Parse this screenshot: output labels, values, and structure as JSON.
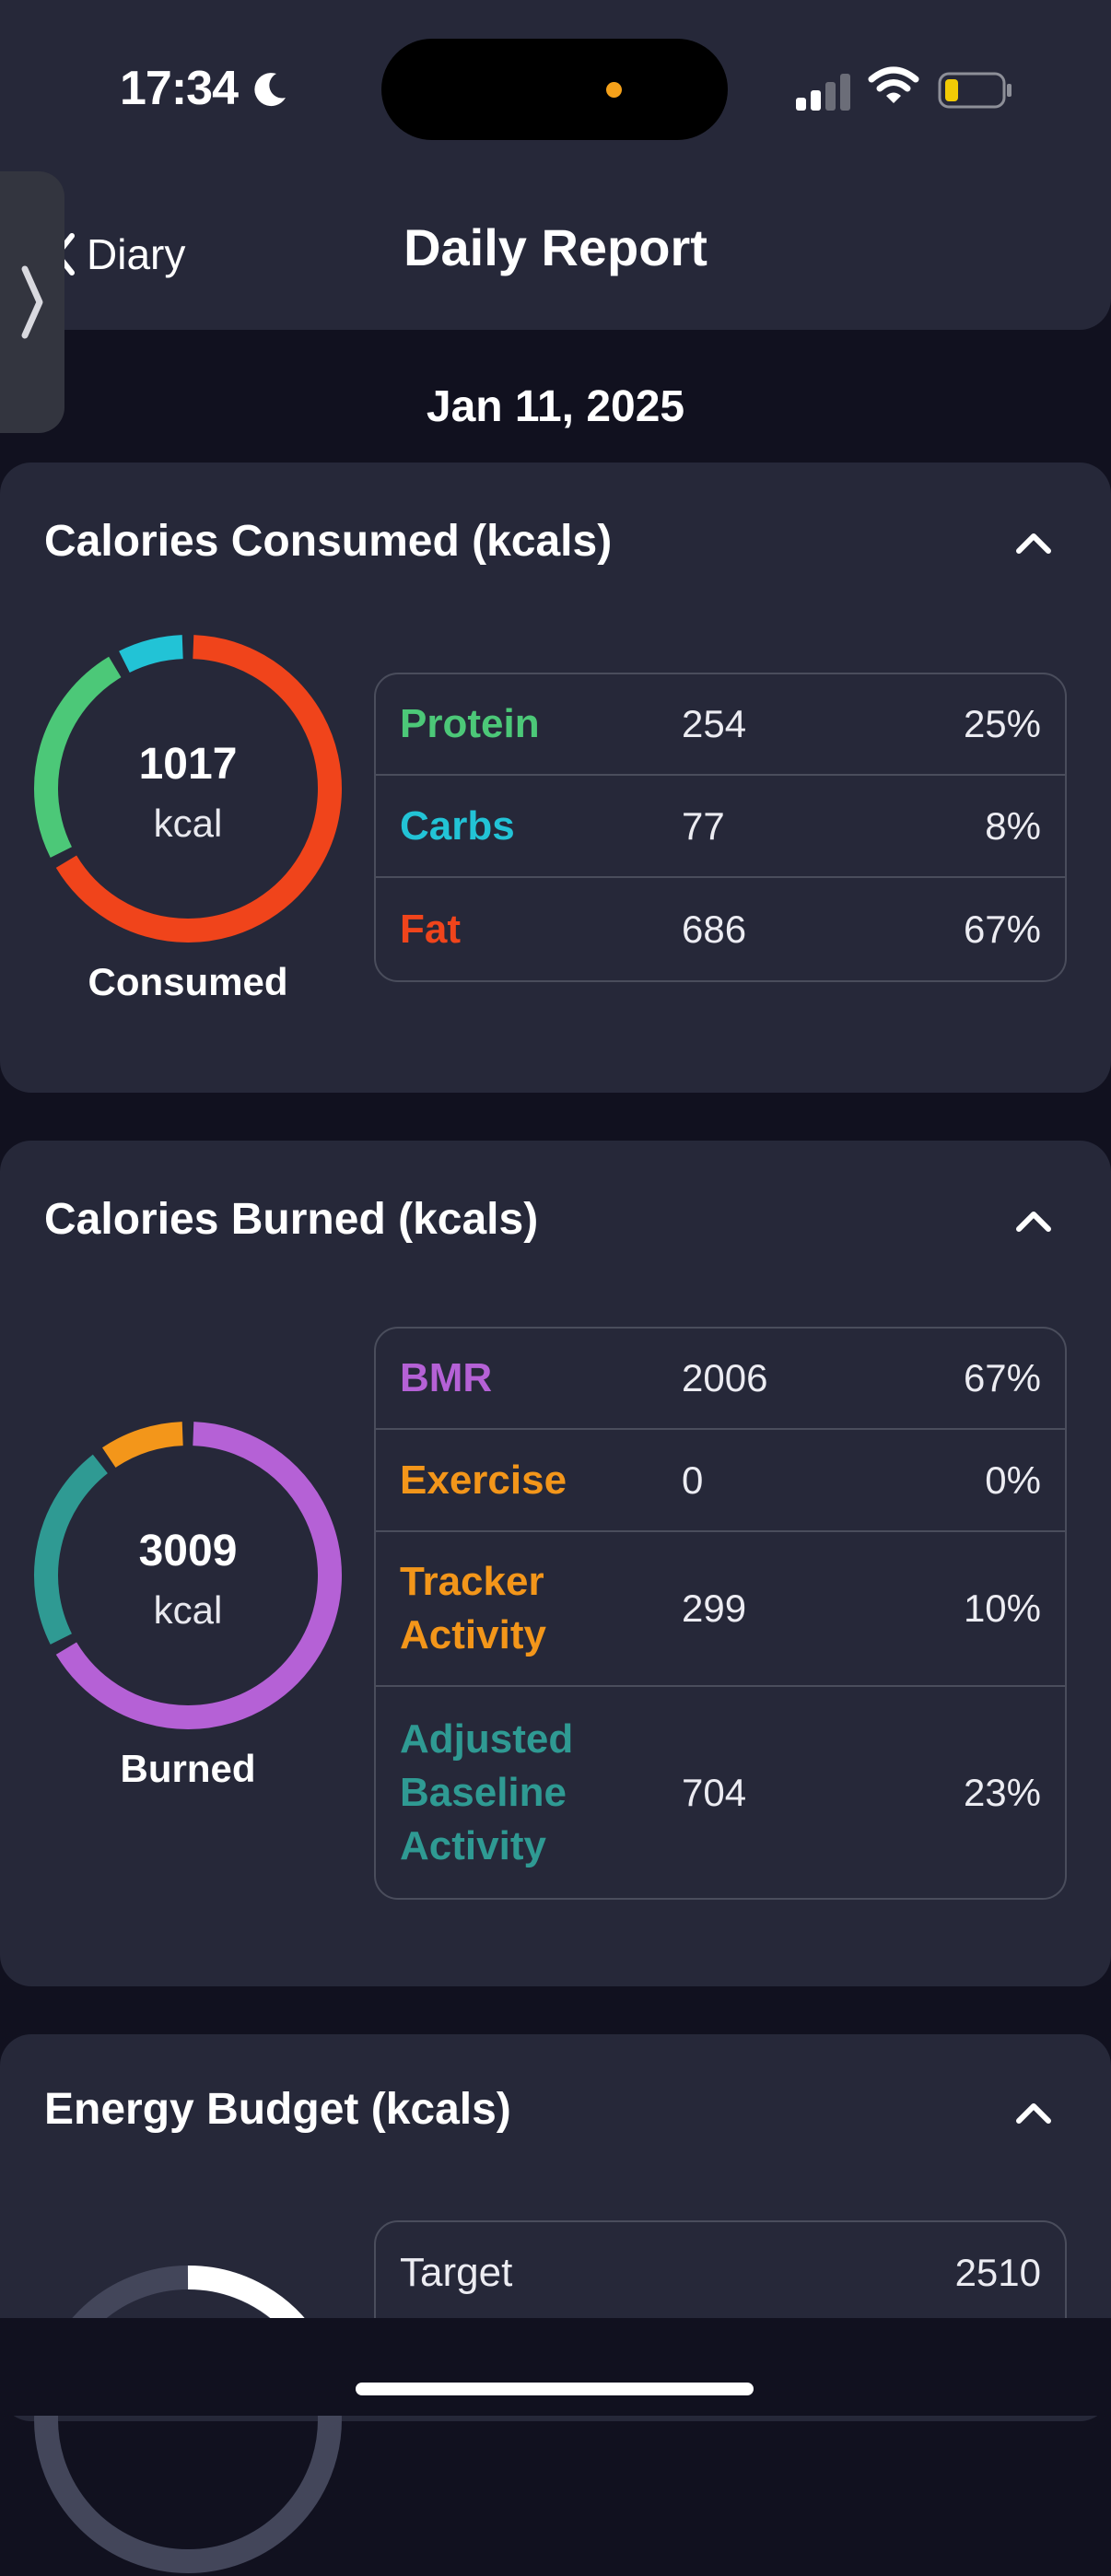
{
  "status_bar": {
    "time": "17:34",
    "icons": [
      "moon-icon",
      "cellular-signal-icon",
      "wifi-icon",
      "battery-low-icon"
    ]
  },
  "header": {
    "back_label": "Diary",
    "title": "Daily Report"
  },
  "date": "Jan 11, 2025",
  "consumed": {
    "title": "Calories Consumed (kcals)",
    "total": "1017",
    "unit": "kcal",
    "caption": "Consumed",
    "rows": [
      {
        "name": "Protein",
        "value": "254",
        "pct": "25%",
        "color": "#4cc878"
      },
      {
        "name": "Carbs",
        "value": "77",
        "pct": "8%",
        "color": "#22c3d6"
      },
      {
        "name": "Fat",
        "value": "686",
        "pct": "67%",
        "color": "#f0441b"
      }
    ],
    "segments": [
      {
        "name": "Fat",
        "fraction": 0.67,
        "color": "#f0441b"
      },
      {
        "name": "Protein",
        "fraction": 0.25,
        "color": "#4cc878"
      },
      {
        "name": "Carbs",
        "fraction": 0.08,
        "color": "#22c3d6"
      }
    ]
  },
  "burned": {
    "title": "Calories Burned (kcals)",
    "total": "3009",
    "unit": "kcal",
    "caption": "Burned",
    "rows": [
      {
        "name": "BMR",
        "value": "2006",
        "pct": "67%",
        "color": "#b561d6"
      },
      {
        "name": "Exercise",
        "value": "0",
        "pct": "0%",
        "color": "#f3961a"
      },
      {
        "name": "Tracker Activity",
        "value": "299",
        "pct": "10%",
        "color": "#f3961a"
      },
      {
        "name": "Adjusted Baseline Activity",
        "value": "704",
        "pct": "23%",
        "color": "#2f9a93"
      }
    ],
    "segments": [
      {
        "name": "BMR",
        "fraction": 0.67,
        "color": "#b561d6"
      },
      {
        "name": "Adjusted Baseline Activity",
        "fraction": 0.23,
        "color": "#2f9a93"
      },
      {
        "name": "Tracker Activity",
        "fraction": 0.1,
        "color": "#f3961a"
      }
    ]
  },
  "budget": {
    "title": "Energy Budget (kcals)",
    "rows": [
      {
        "name": "Target",
        "value": "2510"
      }
    ],
    "ring_track_color": "#43465a",
    "ring_fill_color": "#ffffff"
  }
}
